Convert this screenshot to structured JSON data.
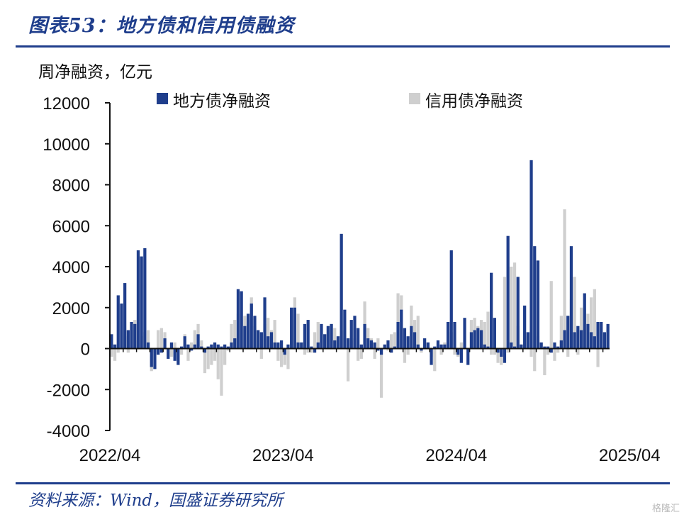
{
  "header": {
    "title": "图表53：地方债和信用债融资"
  },
  "footer": {
    "source": "资料来源：Wind，国盛证券研究所",
    "watermark": "格隆汇"
  },
  "colors": {
    "local": "#1f3e8c",
    "credit": "#cfcfcf",
    "rule": "#1f3e8c"
  },
  "chart_data": {
    "type": "bar",
    "title": "地方债和信用债融资",
    "ylabel": "周净融资，亿元",
    "ylim": [
      -4000,
      12000
    ],
    "yticks": [
      -4000,
      -2000,
      0,
      2000,
      4000,
      6000,
      8000,
      10000,
      12000
    ],
    "x_start": "2022/04",
    "x_end": "2025/04",
    "xtick_labels": [
      "2022/04",
      "2023/04",
      "2024/04",
      "2025/04"
    ],
    "xtick_index": [
      0,
      52,
      104,
      156
    ],
    "legend": [
      "地方债净融资",
      "信用债净融资"
    ],
    "series": [
      {
        "name": "地方债净融资",
        "values": [
          700,
          200,
          2600,
          2200,
          3200,
          900,
          1300,
          1200,
          4800,
          4500,
          4900,
          300,
          -900,
          -1000,
          -300,
          -200,
          500,
          -500,
          300,
          -600,
          -800,
          100,
          600,
          200,
          -100,
          200,
          700,
          100,
          -200,
          100,
          200,
          300,
          200,
          100,
          200,
          100,
          300,
          500,
          2900,
          2800,
          1100,
          1700,
          2200,
          1600,
          900,
          800,
          2500,
          600,
          800,
          300,
          300,
          400,
          -300,
          200,
          2000,
          2000,
          300,
          300,
          1200,
          1400,
          100,
          -200,
          300,
          1200,
          700,
          1100,
          1200,
          400,
          600,
          5600,
          1900,
          500,
          1400,
          1600,
          1000,
          200,
          1200,
          500,
          400,
          300,
          -100,
          -300,
          200,
          400,
          -200,
          100,
          1300,
          1900,
          1000,
          600,
          1100,
          800,
          200,
          -100,
          500,
          300,
          -800,
          100,
          400,
          200,
          200,
          1300,
          4800,
          1300,
          -300,
          -700,
          1500,
          -800,
          800,
          900,
          1000,
          900,
          200,
          100,
          3700,
          1500,
          -200,
          -400,
          -700,
          5500,
          300,
          100,
          3500,
          200,
          2100,
          800,
          9200,
          5000,
          4300,
          300,
          100,
          100,
          -200,
          300,
          100,
          400,
          900,
          1600,
          5000,
          800,
          1100,
          900,
          2700,
          1200,
          800,
          600,
          1300,
          1300,
          800,
          1200
        ],
        "credit": "x"
      },
      {
        "name": "信用债净融资",
        "values": [
          -400,
          -600,
          -200,
          900,
          600,
          -200,
          900,
          1400,
          400,
          600,
          800,
          900,
          -1100,
          -200,
          900,
          1000,
          800,
          -200,
          -400,
          300,
          -500,
          -300,
          700,
          -600,
          300,
          900,
          1200,
          400,
          -1200,
          -1000,
          -800,
          -600,
          -1500,
          -2300,
          -800,
          -100,
          1200,
          1400,
          1700,
          1400,
          1600,
          1400,
          2500,
          1100,
          900,
          -500,
          1200,
          1500,
          900,
          1400,
          -600,
          -900,
          -800,
          -1000,
          1400,
          2500,
          1700,
          300,
          -300,
          -200,
          -200,
          800,
          1300,
          1100,
          700,
          700,
          1200,
          1000,
          400,
          900,
          900,
          -1600,
          400,
          500,
          -600,
          -500,
          2300,
          1000,
          500,
          -500,
          500,
          -2400,
          100,
          -100,
          700,
          800,
          2700,
          2600,
          -700,
          -300,
          2100,
          1400,
          1600,
          -200,
          100,
          300,
          -400,
          -1100,
          300,
          -300,
          300,
          200,
          800,
          -300,
          -400,
          300,
          100,
          -200,
          1400,
          1500,
          1100,
          1400,
          1300,
          1800,
          -300,
          -300,
          -700,
          -800,
          3500,
          -200,
          4000,
          4200,
          1100,
          200,
          800,
          600,
          -400,
          -1100,
          600,
          300,
          -1300,
          -300,
          3300,
          -600,
          -200,
          1600,
          6800,
          -400,
          2400,
          3500,
          -300,
          2000,
          1900,
          1700,
          2500,
          2900,
          -900
        ]
      }
    ]
  }
}
